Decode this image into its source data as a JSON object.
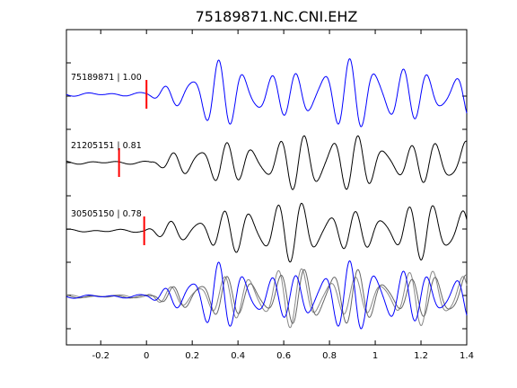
{
  "chart_data": {
    "type": "line",
    "title": "75189871.NC.CNI.EHZ",
    "xlabel": "",
    "ylabel": "",
    "xlim": [
      -0.35,
      1.4
    ],
    "x_ticks": [
      -0.2,
      0,
      0.2,
      0.4,
      0.6,
      0.8,
      1,
      1.2,
      1.4
    ],
    "x_tick_labels": [
      "-0.2",
      "0",
      "0.2",
      "0.4",
      "0.6",
      "0.8",
      "1",
      "1.2",
      "1.4"
    ],
    "grid": false,
    "traces": [
      {
        "label": "75189871 | 1.00",
        "color": "#0000ff",
        "pick_time": 0.0,
        "onset": 0.0,
        "amplitude": 1.0,
        "seed": 1
      },
      {
        "label": "21205151 | 0.81",
        "color": "#000000",
        "pick_time": -0.12,
        "onset": 0.02,
        "amplitude": 0.9,
        "seed": 2
      },
      {
        "label": "30505150 | 0.78",
        "color": "#000000",
        "pick_time": -0.01,
        "onset": -0.01,
        "amplitude": 0.85,
        "seed": 3
      }
    ],
    "stack": {
      "colors": [
        "#888888",
        "#666666",
        "#0000ff"
      ]
    }
  },
  "colors": {
    "pick_marker": "#ff0000",
    "axes": "#000000"
  }
}
